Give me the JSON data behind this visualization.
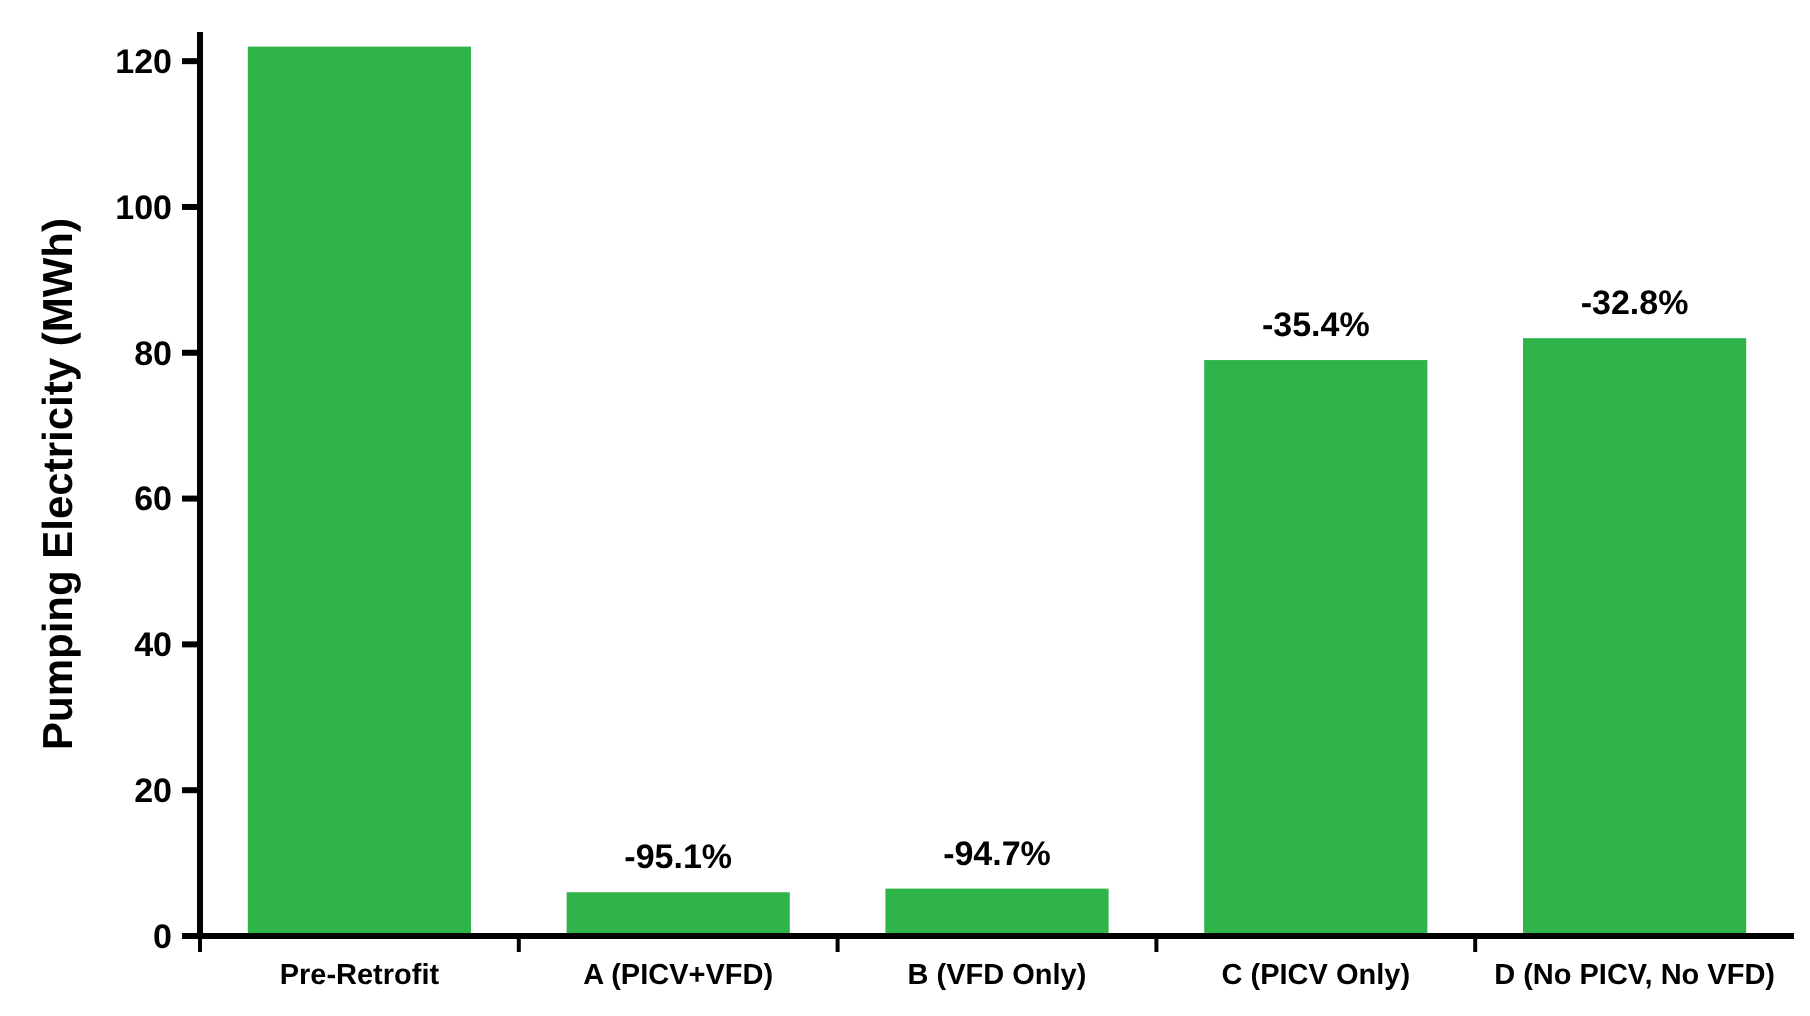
{
  "chart_data": {
    "type": "bar",
    "ylabel": "Pumping Electricity (MWh)",
    "categories": [
      "Pre-Retrofit",
      "A (PICV+VFD)",
      "B (VFD Only)",
      "C (PICV Only)",
      "D (No PICV, No VFD)"
    ],
    "values": [
      122,
      6,
      6.5,
      79,
      82
    ],
    "annotations": [
      {
        "text": "-95.1%",
        "x": "A (PICV+VFD)",
        "y": 6
      },
      {
        "text": "-94.7%",
        "x": "B (VFD Only)",
        "y": 6.5
      },
      {
        "text": "-35.4%",
        "x": "C (PICV Only)",
        "y": 79
      },
      {
        "text": "-32.8%",
        "x": "D (No PICV, No VFD)",
        "y": 82
      }
    ],
    "color": "#2fb44a",
    "ylim": [
      0,
      124
    ],
    "yticks": [
      0,
      20,
      40,
      60,
      80,
      100,
      120
    ],
    "grid": false
  }
}
